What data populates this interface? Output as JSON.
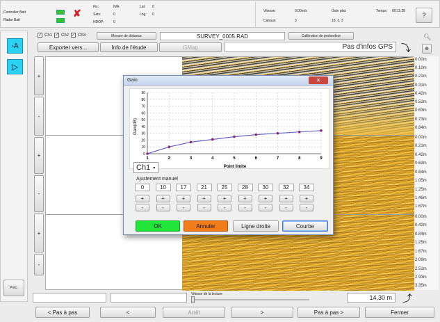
{
  "status": {
    "controller_batt": "Controller Batt",
    "radar_batt": "Radar Batt",
    "fix_label": "Fix:",
    "fix_value": "N/A",
    "sats_label": "Sats:",
    "sats_value": "0",
    "hdop_label": "HDOP:",
    "hdop_value": "0",
    "lat_label": "Lat:",
    "lat_value": "0",
    "lng_label": "Lng:",
    "lng_value": "0",
    "vitesse_label": "Vitesse:",
    "vitesse_value": "0,00m/s",
    "canaux_label": "Canaux:",
    "canaux_value": "3",
    "gain_plat_label": "Gain plat:",
    "gain_plat_value": "18, 3, 3",
    "temps_label": "Temps:",
    "temps_value": "00:11:28",
    "help_label": "?"
  },
  "toolbar": {
    "ch1": "Ch1",
    "ch2": "Ch2",
    "ch3": "Ch3",
    "mesure": "Mesure de distance",
    "filename": "SURVEY_0005.RAD",
    "calibration": "Calibration de profondeur",
    "exporter": "Exporter vers...",
    "info": "Info de l'étude",
    "gmap": "GMap",
    "gps": "Pas d'infos GPS"
  },
  "depths": {
    "ch1": [
      "0.00m",
      "0.10m",
      "0.21m",
      "0.31m",
      "0.42m",
      "0.52m",
      "0.63m",
      "0.73m",
      "0.84m"
    ],
    "ch2": [
      "0.00m",
      "0.21m",
      "0.42m",
      "0.63m",
      "0.84m",
      "1.05m",
      "1.25m",
      "1.46m",
      "1.67m"
    ],
    "ch3": [
      "0.00m",
      "0.42m",
      "0.84m",
      "1.25m",
      "1.67m",
      "2.09m",
      "2.51m",
      "2.93m",
      "3.35m"
    ]
  },
  "dialog": {
    "title": "Gain",
    "channel": "Ch1",
    "manual_label": "Ajustement manuel",
    "ok": "OK",
    "annuler": "Annuler",
    "ligne": "Ligne droite",
    "courbe": "Courbe",
    "plus": "+",
    "minus": "-",
    "gains": [
      "0",
      "10",
      "17",
      "21",
      "25",
      "28",
      "30",
      "32",
      "34"
    ]
  },
  "chart_data": {
    "type": "line",
    "xlabel": "Point limite",
    "ylabel": "Gain(dB)",
    "x": [
      1,
      2,
      3,
      4,
      5,
      6,
      7,
      8,
      9
    ],
    "values": [
      0,
      10,
      17,
      21,
      25,
      28,
      30,
      32,
      34
    ],
    "xlim": [
      1,
      9
    ],
    "ylim": [
      0,
      90
    ],
    "xticks": [
      "1",
      "2",
      "3",
      "4",
      "5",
      "6",
      "7",
      "8",
      "9"
    ],
    "yticks": [
      "0",
      "10",
      "20",
      "30",
      "40",
      "50",
      "60",
      "70",
      "80",
      "90"
    ],
    "grid": true,
    "color": "#6a63c9"
  },
  "bottom": {
    "vitesse_lecture": "Vitesse de la lecture",
    "distance": "14,30 m",
    "pas_a_pas_prev": "< Pas à pas",
    "prev": "<",
    "arret": "Arrêt",
    "next": ">",
    "pas_a_pas_next": "Pas à pas >",
    "fermer": "Fermer",
    "prec": "Préc."
  }
}
